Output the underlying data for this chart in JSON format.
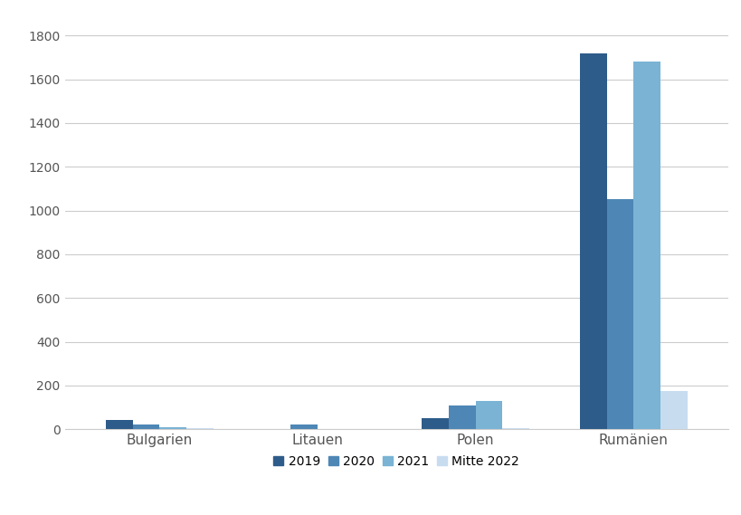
{
  "categories": [
    "Bulgarien",
    "Litauen",
    "Polen",
    "Rumänien"
  ],
  "series": {
    "2019": [
      42,
      0,
      50,
      1720
    ],
    "2020": [
      22,
      20,
      110,
      1050
    ],
    "2021": [
      10,
      0,
      130,
      1680
    ],
    "Mitte 2022": [
      4,
      1,
      5,
      175
    ]
  },
  "colors": {
    "2019": "#2E5C8A",
    "2020": "#4E87B5",
    "2021": "#7AB3D4",
    "Mitte 2022": "#C8DCF0"
  },
  "legend_labels": [
    "2019",
    "2020",
    "2021",
    "Mitte 2022"
  ],
  "ylim": [
    0,
    1900
  ],
  "yticks": [
    0,
    200,
    400,
    600,
    800,
    1000,
    1200,
    1400,
    1600,
    1800
  ],
  "background_color": "#FFFFFF",
  "grid_color": "#CCCCCC",
  "bar_width": 0.17,
  "figsize": [
    8.2,
    5.69
  ],
  "dpi": 100
}
